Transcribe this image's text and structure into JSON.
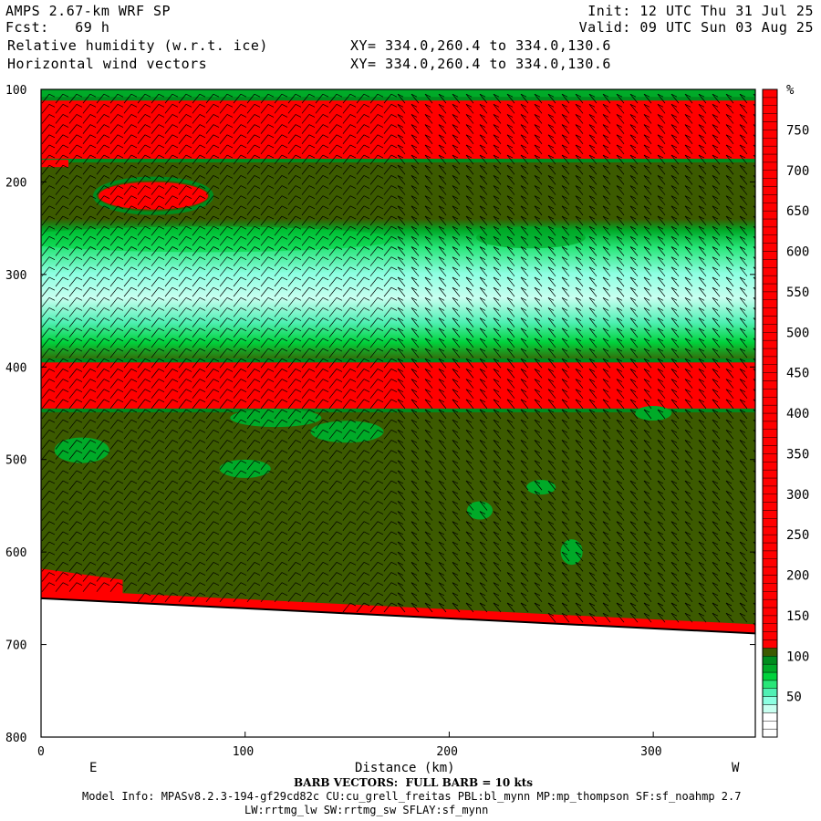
{
  "header": {
    "title": "AMPS 2.67-km WRF SP",
    "fcst": "Fcst:   69 h",
    "field1": "Relative humidity (w.r.t. ice)",
    "field2": "Horizontal wind vectors",
    "init": "Init: 12 UTC Thu 31 Jul 25",
    "valid": "Valid: 09 UTC Sun 03 Aug 25",
    "xy1": "XY= 334.0,260.4 to 334.0,130.6",
    "xy2": "XY= 334.0,260.4 to 334.0,130.6"
  },
  "footer": {
    "barb_note": "BARB VECTORS:  FULL BARB = 10 kts",
    "model_info": "Model Info: MPASv8.2.3-194-gf29cd82c CU:cu_grell_freitas PBL:bl_mynn MP:mp_thompson SF:sf_noahmp 2.7",
    "model_info2": "LW:rrtmg_lw SW:rrtmg_sw SFLAY:sf_mynn"
  },
  "chart_data": {
    "type": "heatmap",
    "title": "Relative humidity (w.r.t. ice)",
    "xlabel": "Distance (km)",
    "x_end_labels": [
      "E",
      "W"
    ],
    "xlim": [
      0,
      350
    ],
    "ylim": [
      800,
      100
    ],
    "y_inverted": true,
    "xticks": [
      0,
      100,
      200,
      300
    ],
    "yticks": [
      100,
      200,
      300,
      400,
      500,
      600,
      700,
      800
    ],
    "colorbar": {
      "unit": "%",
      "labels": [
        50,
        100,
        150,
        200,
        250,
        300,
        350,
        400,
        450,
        500,
        550,
        600,
        650,
        700,
        750
      ],
      "levels": [
        {
          "max": 10,
          "color": "#ffffff"
        },
        {
          "max": 20,
          "color": "#ffffff"
        },
        {
          "max": 30,
          "color": "#ffffff"
        },
        {
          "max": 40,
          "color": "#c8fff0"
        },
        {
          "max": 50,
          "color": "#8cffe1"
        },
        {
          "max": 60,
          "color": "#50f0b4"
        },
        {
          "max": 70,
          "color": "#28e678"
        },
        {
          "max": 80,
          "color": "#00d23c"
        },
        {
          "max": 90,
          "color": "#00aa28"
        },
        {
          "max": 100,
          "color": "#008c1e"
        },
        {
          "max": 110,
          "color": "#3c5a00"
        },
        {
          "max": 800,
          "color": "#ff0000"
        }
      ]
    },
    "humidity_bands": [
      {
        "p_top": 100,
        "p_bot": 112,
        "level": "green"
      },
      {
        "p_top": 112,
        "p_bot": 175,
        "level": "red"
      },
      {
        "p_top": 175,
        "p_bot": 240,
        "level": "olive"
      },
      {
        "p_top": 240,
        "p_bot": 395,
        "level": "moist-green-cyan"
      },
      {
        "p_top": 395,
        "p_bot": 445,
        "level": "red"
      },
      {
        "p_top": 445,
        "p_bot": 680,
        "level": "olive"
      }
    ],
    "surface_pressure": {
      "x": [
        0,
        350
      ],
      "p": [
        650,
        688
      ]
    },
    "barbs": "full barb = 10 kts"
  }
}
